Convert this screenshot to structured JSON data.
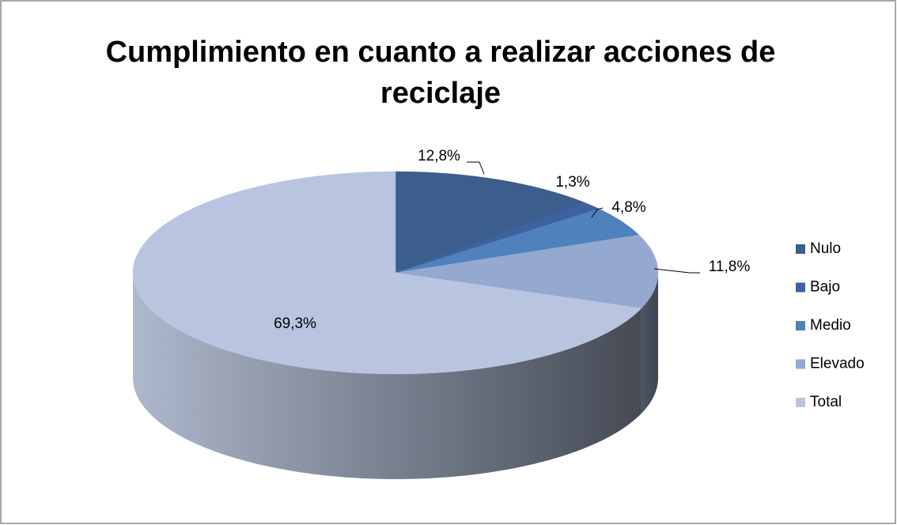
{
  "chart_data": {
    "type": "pie3d",
    "title": "Cumplimiento en cuanto a realizar acciones de reciclaje",
    "categories": [
      "Nulo",
      "Bajo",
      "Medio",
      "Elevado",
      "Total"
    ],
    "values": [
      12.8,
      1.3,
      4.8,
      11.8,
      69.3
    ],
    "value_labels": [
      "12,8%",
      "1,3%",
      "4,8%",
      "11,8%",
      "69,3%"
    ],
    "colors": [
      "#3b5e8c",
      "#3c62a0",
      "#4f81bd",
      "#94a8d0",
      "#b9c5e0"
    ],
    "legend": "right"
  }
}
